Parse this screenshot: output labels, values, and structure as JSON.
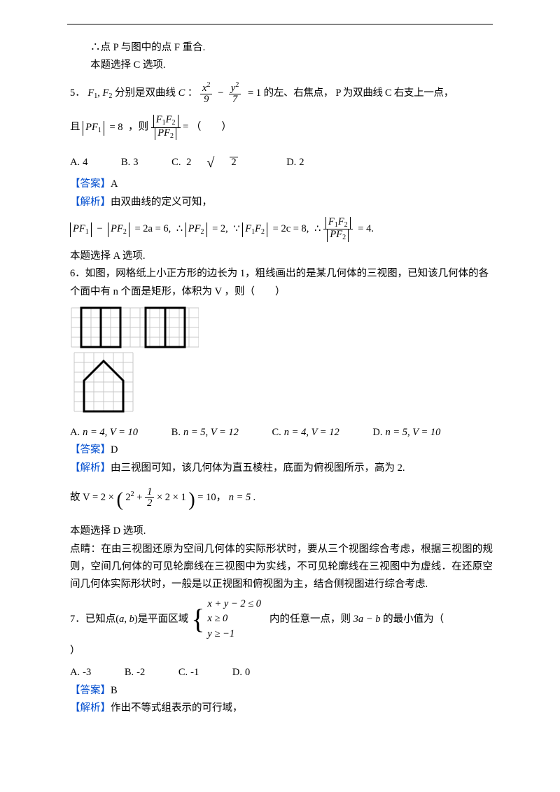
{
  "intro": {
    "l1": "∴点 P 与图中的点 F 重合.",
    "l2": "本题选择 C 选项."
  },
  "q5": {
    "stem_a": "5．",
    "stem_b": " 分别是双曲线 ",
    "stem_c": "：",
    "stem_d": " 的左、右焦点，  P 为双曲线 C 右支上一点，",
    "C": "C",
    "hyp_num1": "x",
    "hyp_sup1": "2",
    "hyp_den1": "9",
    "hyp_num2": "y",
    "hyp_sup2": "2",
    "hyp_den2": "7",
    "hyp_eq": "= 1",
    "line2a": "且",
    "pf1": "PF",
    "pf1i": "1",
    "pf1v": "= 8",
    "line2b": "，则",
    "ratio_top": "F",
    "ratio_ti": "1",
    "ratio_tj": "2",
    "ratio_T": "F",
    "ratio_bot": "PF",
    "ratio_bi": "2",
    "line2c": " = （　　）",
    "opts": {
      "A": "4",
      "B": "3",
      "C_pre": "2",
      "C_rad": "2",
      "C": "",
      "D": "2",
      "labA": "A.",
      "labB": "B.",
      "labC": "C.",
      "labD": "D."
    },
    "ans": "A",
    "ans_lbl": "【答案】",
    "exp_lbl": "【解析】",
    "exp_txt": "由双曲线的定义可知，",
    "deriv": {
      "a": "= 2a = 6,",
      "b": "= 2,",
      "c": "= 2c = 8,",
      "d": "= 4.",
      "t1": "∴",
      "t2": "∵",
      "t3": "∴"
    },
    "concl": "本题选择 A 选项."
  },
  "q6": {
    "stem": "6．如图，网格纸上小正方形的边长为 1，粗线画出的是某几何体的三视图，已知该几何体的各个面中有 n 个面是矩形，体积为 V ，则（　　）",
    "views": {
      "cell": 15,
      "stroke": "#c9c9c9",
      "stroke_bold": "#000",
      "top_cols": 12,
      "top_rows": 4,
      "bot_cols": 6,
      "bot_rows": 6
    },
    "opts": {
      "A": "n = 4, V = 10",
      "B": "n = 5, V = 12",
      "C": "n = 4, V = 12",
      "D": "n = 5, V = 10",
      "labA": "A.",
      "labB": "B.",
      "labC": "C.",
      "labD": "D."
    },
    "ans": "D",
    "ans_lbl": "【答案】",
    "exp_lbl": "【解析】",
    "exp_txt": "由三视图可知，该几何体为直五棱柱，底面为俯视图所示，高为 2.",
    "vol_a": "故 ",
    "vol_V": "V = 2 ×",
    "vol_in_a": "2",
    "vol_in_sup": "2",
    "vol_in_plus": " + ",
    "vol_frac_n": "1",
    "vol_frac_d": "2",
    "vol_in_b": "× 2 × 1",
    "vol_out": " = 10，",
    "vol_n": "n = 5 .",
    "concl": "本题选择 D 选项.",
    "tip": "点睛：在由三视图还原为空间几何体的实际形状时，要从三个视图综合考虑，根据三视图的规则，空间几何体的可见轮廓线在三视图中为实线，不可见轮廓线在三视图中为虚线．在还原空间几何体实际形状时，一般是以正视图和俯视图为主，结合侧视图进行综合考虑."
  },
  "q7": {
    "stem_a": "7．已知点",
    "ab": "a, b",
    "stem_b": "是平面区域",
    "sys": {
      "r1": "x + y − 2 ≤ 0",
      "r2": "x ≥ 0",
      "r3": "y ≥ −1"
    },
    "stem_c": "内的任意一点，则 ",
    "expr": "3a − b",
    "stem_d": " 的最小值为（",
    "close": "）",
    "opts": {
      "A": "-3",
      "B": "-2",
      "C": "-1",
      "D": "0",
      "labA": "A.",
      "labB": "B.",
      "labC": "C.",
      "labD": "D."
    },
    "ans": "B",
    "ans_lbl": "【答案】",
    "exp_lbl": "【解析】",
    "exp_txt": "作出不等式组表示的可行域，"
  }
}
